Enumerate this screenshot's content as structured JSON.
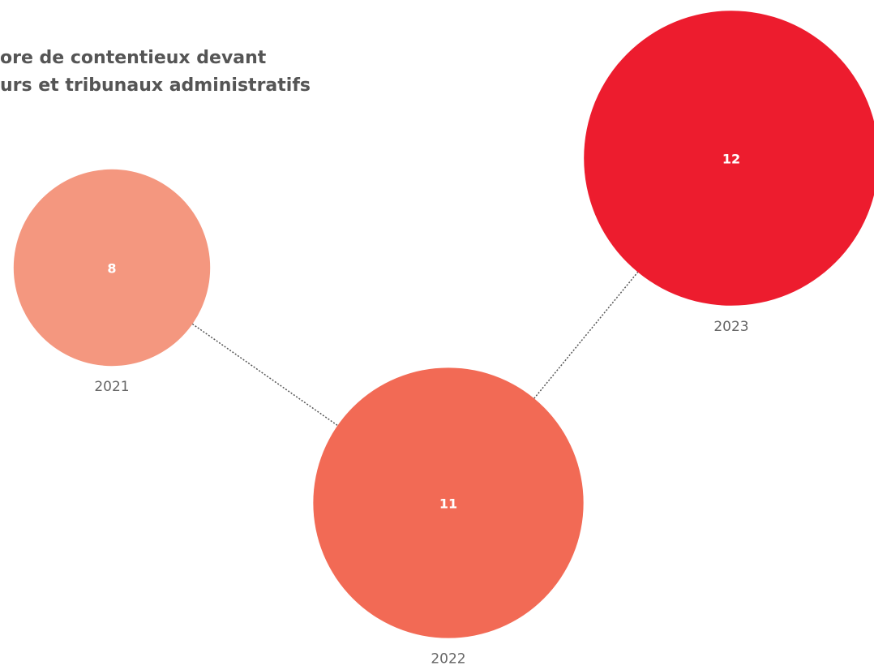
{
  "chart_data": {
    "type": "bubble",
    "title": [
      "ore de contentieux devant",
      "urs et tribunaux administratifs"
    ],
    "categories": [
      "2021",
      "2022",
      "2023"
    ],
    "values": [
      8,
      11,
      12
    ],
    "colors": [
      "#f4977f",
      "#f26a55",
      "#ed1c2e"
    ]
  }
}
